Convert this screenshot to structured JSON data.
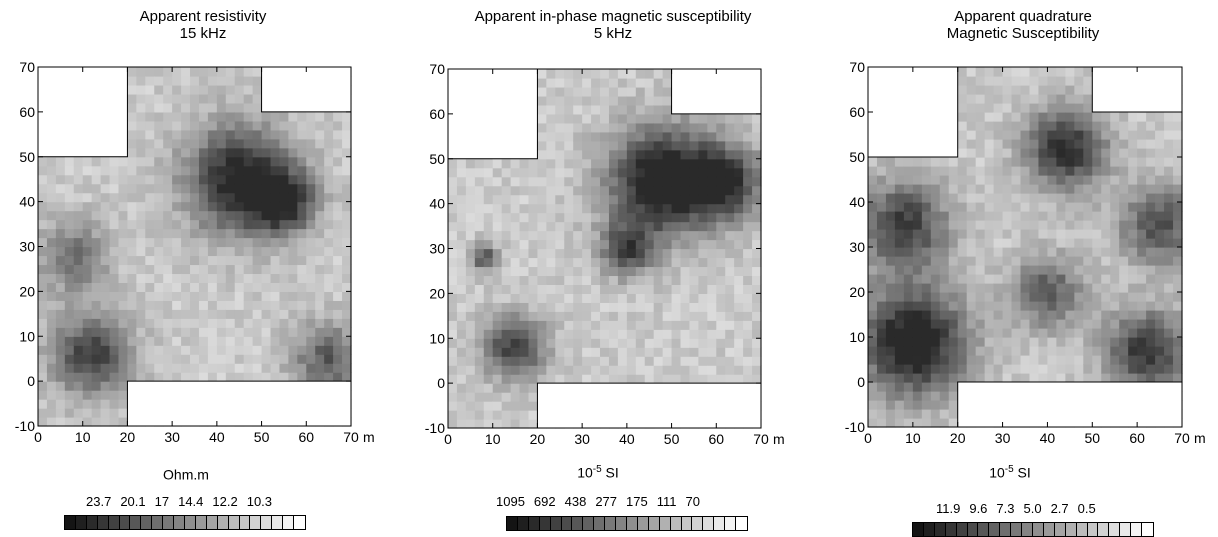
{
  "chart_data": [
    {
      "type": "heatmap",
      "title": "Apparent resistivity",
      "subtitle": "15 kHz",
      "xlabel": "m",
      "ylabel": "",
      "xlim": [
        0,
        70
      ],
      "ylim": [
        -10,
        70
      ],
      "xticks": [
        0,
        10,
        20,
        30,
        40,
        50,
        60,
        70
      ],
      "yticks": [
        -10,
        0,
        10,
        20,
        30,
        40,
        50,
        60,
        70
      ],
      "unit_label": "Ohm.m",
      "unit_sup": "",
      "unit_after": "",
      "scale_values": [
        "23.7",
        "20.1",
        "17",
        "14.4",
        "12.2",
        "10.3"
      ],
      "color_scale": "dark-high",
      "blank_regions": [
        {
          "x0": 0,
          "x1": 20,
          "y0": 50,
          "y1": 70
        },
        {
          "x0": 50,
          "x1": 70,
          "y0": 60,
          "y1": 70
        },
        {
          "x0": 20,
          "x1": 70,
          "y0": -10,
          "y1": 0
        }
      ],
      "features": [
        {
          "x": 45,
          "y": 45,
          "r": 12,
          "level": 0.85
        },
        {
          "x": 55,
          "y": 40,
          "r": 7,
          "level": 0.7
        },
        {
          "x": 12,
          "y": 6,
          "r": 9,
          "level": 0.7
        },
        {
          "x": 8,
          "y": 28,
          "r": 8,
          "level": 0.45
        },
        {
          "x": 65,
          "y": 5,
          "r": 8,
          "level": 0.55
        }
      ]
    },
    {
      "type": "heatmap",
      "title": "Apparent in-phase magnetic susceptibility",
      "subtitle": "5 kHz",
      "xlabel": "m",
      "ylabel": "",
      "xlim": [
        0,
        70
      ],
      "ylim": [
        -10,
        70
      ],
      "xticks": [
        0,
        10,
        20,
        30,
        40,
        50,
        60,
        70
      ],
      "yticks": [
        -10,
        0,
        10,
        20,
        30,
        40,
        50,
        60,
        70
      ],
      "unit_label": "10",
      "unit_sup": "-5",
      "unit_after": " SI",
      "scale_values": [
        "1095",
        "692",
        "438",
        "277",
        "175",
        "111",
        "70"
      ],
      "color_scale": "dark-high",
      "blank_regions": [
        {
          "x0": 0,
          "x1": 20,
          "y0": 50,
          "y1": 70
        },
        {
          "x0": 50,
          "x1": 70,
          "y0": 60,
          "y1": 70
        },
        {
          "x0": 20,
          "x1": 70,
          "y0": -10,
          "y1": 0
        }
      ],
      "features": [
        {
          "x": 48,
          "y": 45,
          "r": 12,
          "level": 0.95
        },
        {
          "x": 62,
          "y": 45,
          "r": 8,
          "level": 0.75
        },
        {
          "x": 40,
          "y": 30,
          "r": 6,
          "level": 0.6
        },
        {
          "x": 15,
          "y": 8,
          "r": 7,
          "level": 0.7
        },
        {
          "x": 8,
          "y": 28,
          "r": 3,
          "level": 0.6
        }
      ]
    },
    {
      "type": "heatmap",
      "title": "Apparent quadrature",
      "subtitle": "Magnetic Susceptibility",
      "xlabel": "m",
      "ylabel": "",
      "xlim": [
        0,
        70
      ],
      "ylim": [
        -10,
        70
      ],
      "xticks": [
        0,
        10,
        20,
        30,
        40,
        50,
        60,
        70
      ],
      "yticks": [
        -10,
        0,
        10,
        20,
        30,
        40,
        50,
        60,
        70
      ],
      "unit_label": "10",
      "unit_sup": "-5",
      "unit_after": " SI",
      "scale_values": [
        "11.9",
        "9.6",
        "7.3",
        "5.0",
        "2.7",
        "0.5"
      ],
      "color_scale": "dark-high",
      "blank_regions": [
        {
          "x0": 0,
          "x1": 20,
          "y0": 50,
          "y1": 70
        },
        {
          "x0": 50,
          "x1": 70,
          "y0": 60,
          "y1": 70
        },
        {
          "x0": 20,
          "x1": 70,
          "y0": -10,
          "y1": 0
        }
      ],
      "features": [
        {
          "x": 10,
          "y": 9,
          "r": 12,
          "level": 0.95
        },
        {
          "x": 8,
          "y": 35,
          "r": 10,
          "level": 0.7
        },
        {
          "x": 44,
          "y": 52,
          "r": 9,
          "level": 0.8
        },
        {
          "x": 62,
          "y": 7,
          "r": 9,
          "level": 0.75
        },
        {
          "x": 65,
          "y": 35,
          "r": 9,
          "level": 0.6
        },
        {
          "x": 40,
          "y": 20,
          "r": 8,
          "level": 0.55
        }
      ]
    }
  ]
}
